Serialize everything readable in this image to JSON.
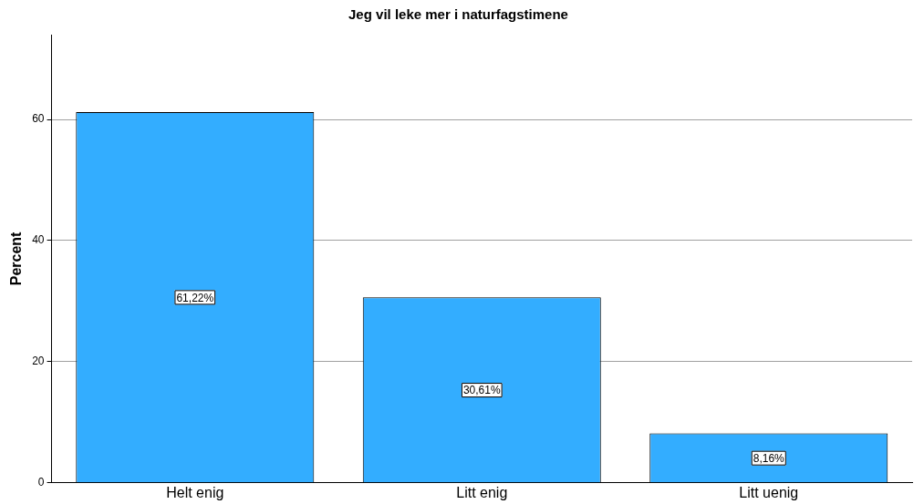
{
  "chart_data": {
    "type": "bar",
    "title": "Jeg vil leke mer i naturfagstimene",
    "ylabel": "Percent",
    "categories": [
      "Helt enig",
      "Litt enig",
      "Litt uenig"
    ],
    "values": [
      61.22,
      30.61,
      8.16
    ],
    "value_labels": [
      "61,22%",
      "30,61%",
      "8,16%"
    ],
    "color": "#33adff",
    "ylim": [
      0,
      74
    ],
    "yticks": [
      0,
      20,
      40,
      60
    ],
    "grid": "y",
    "legend": false
  }
}
